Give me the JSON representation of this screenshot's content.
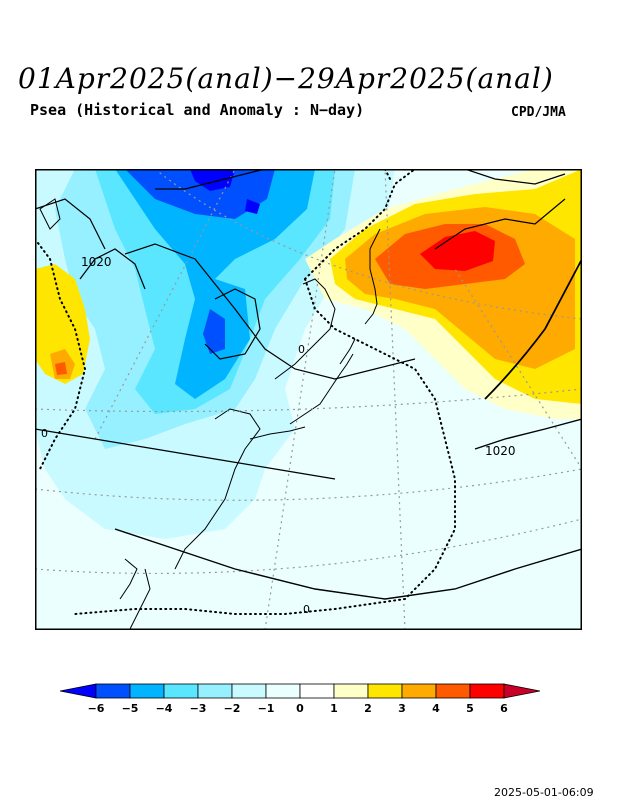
{
  "title": "01Apr2025(anal)−29Apr2025(anal)",
  "subtitle": "Psea (Historical and Anomaly : N−day)",
  "source": "CPD/JMA",
  "timestamp": "2025-05-01-06:09",
  "map": {
    "contour_labels": [
      {
        "id": "isobar-1020-west",
        "text": "1020"
      },
      {
        "id": "isobar-1020-east",
        "text": "1020"
      },
      {
        "id": "zero-line-center",
        "text": "0"
      },
      {
        "id": "zero-line-west",
        "text": "0"
      },
      {
        "id": "zero-line-south",
        "text": "0"
      }
    ]
  },
  "colorbar": {
    "ticks": [
      "−6",
      "−5",
      "−4",
      "−3",
      "−2",
      "−1",
      "0",
      "1",
      "2",
      "3",
      "4",
      "5",
      "6"
    ],
    "colors": [
      "#0000ff",
      "#0050ff",
      "#00b4ff",
      "#5ae6ff",
      "#96f0ff",
      "#c8faff",
      "#ebffff",
      "#ffffff",
      "#ffffc8",
      "#ffe600",
      "#ffaa00",
      "#ff5a00",
      "#ff0000",
      "#c80028"
    ]
  }
}
